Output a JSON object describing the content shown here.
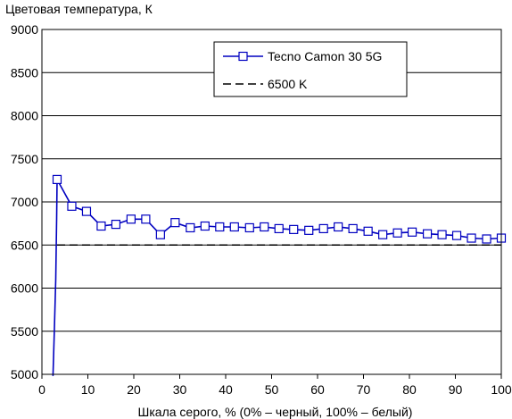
{
  "chart_data": {
    "type": "line",
    "title": "Цветовая температура, К",
    "xlabel": "Шкала серого, % (0% – черный, 100% – белый)",
    "ylabel": "",
    "xlim": [
      0,
      100
    ],
    "ylim": [
      5000,
      9000
    ],
    "x_ticks": [
      "0",
      "10",
      "20",
      "30",
      "40",
      "50",
      "60",
      "70",
      "80",
      "90",
      "100"
    ],
    "y_ticks": [
      "5000",
      "5500",
      "6000",
      "6500",
      "7000",
      "7500",
      "8000",
      "8500",
      "9000"
    ],
    "grid": "horizontal",
    "legend_position": "top-right",
    "series": [
      {
        "name": "Tecno Camon 30 5G",
        "color": "#0000c0",
        "marker": "square",
        "line_points": [
          [
            2.4,
            4980
          ],
          [
            2.7,
            5500
          ],
          [
            3.0,
            6100
          ],
          [
            3.2,
            6800
          ],
          [
            3.3,
            7260
          ]
        ],
        "points": [
          [
            3.3,
            7260
          ],
          [
            6.5,
            6950
          ],
          [
            9.7,
            6890
          ],
          [
            12.9,
            6720
          ],
          [
            16.1,
            6740
          ],
          [
            19.4,
            6800
          ],
          [
            22.6,
            6800
          ],
          [
            25.8,
            6620
          ],
          [
            29.0,
            6760
          ],
          [
            32.3,
            6700
          ],
          [
            35.5,
            6720
          ],
          [
            38.7,
            6710
          ],
          [
            41.9,
            6710
          ],
          [
            45.2,
            6700
          ],
          [
            48.4,
            6710
          ],
          [
            51.6,
            6690
          ],
          [
            54.8,
            6680
          ],
          [
            58.1,
            6670
          ],
          [
            61.3,
            6690
          ],
          [
            64.5,
            6710
          ],
          [
            67.7,
            6690
          ],
          [
            71.0,
            6660
          ],
          [
            74.2,
            6620
          ],
          [
            77.4,
            6640
          ],
          [
            80.6,
            6650
          ],
          [
            83.9,
            6630
          ],
          [
            87.1,
            6620
          ],
          [
            90.3,
            6610
          ],
          [
            93.5,
            6580
          ],
          [
            96.8,
            6570
          ],
          [
            100,
            6580
          ]
        ]
      },
      {
        "name": "6500 K",
        "color": "#000000",
        "dash": true,
        "value": 6500,
        "start_x": 3.3
      }
    ]
  }
}
